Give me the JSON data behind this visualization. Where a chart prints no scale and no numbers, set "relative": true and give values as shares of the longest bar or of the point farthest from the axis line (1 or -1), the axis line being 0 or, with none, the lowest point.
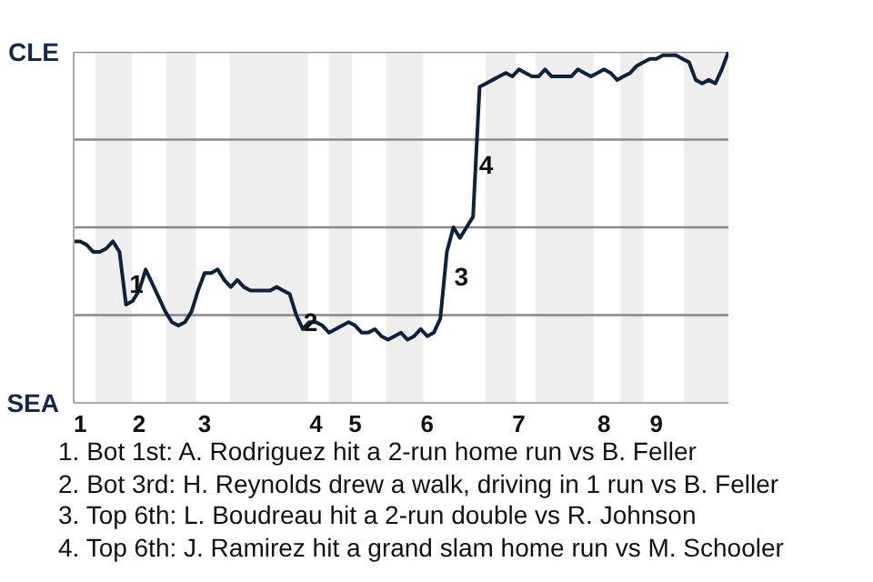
{
  "chart_data": {
    "type": "line",
    "relative": true,
    "categories": [
      null,
      "1",
      null,
      null,
      null,
      null,
      null,
      null,
      null,
      null,
      "2",
      null,
      null,
      null,
      null,
      null,
      null,
      null,
      null,
      null,
      "3",
      null,
      null,
      null,
      null,
      null,
      null,
      null,
      null,
      null,
      null,
      null,
      null,
      null,
      null,
      null,
      null,
      "4",
      null,
      null,
      null,
      null,
      null,
      "5",
      null,
      null,
      null,
      null,
      null,
      null,
      null,
      null,
      null,
      null,
      "6",
      null,
      null,
      null,
      null,
      null,
      null,
      null,
      null,
      null,
      null,
      null,
      null,
      null,
      "7",
      null,
      null,
      null,
      null,
      null,
      null,
      null,
      null,
      null,
      null,
      null,
      null,
      "8",
      null,
      null,
      null,
      null,
      null,
      null,
      null,
      "9",
      null,
      null,
      null,
      null,
      null,
      null,
      null,
      null,
      null,
      null,
      null
    ],
    "series": [
      {
        "color": "#0c2340",
        "values": [
          0.46,
          0.46,
          0.45,
          0.43,
          0.43,
          0.44,
          0.46,
          0.43,
          0.28,
          0.29,
          0.32,
          0.38,
          0.34,
          0.3,
          0.26,
          0.23,
          0.22,
          0.23,
          0.26,
          0.32,
          0.37,
          0.37,
          0.38,
          0.35,
          0.33,
          0.35,
          0.33,
          0.32,
          0.32,
          0.32,
          0.32,
          0.33,
          0.32,
          0.31,
          0.25,
          0.21,
          0.23,
          0.23,
          0.22,
          0.2,
          0.21,
          0.22,
          0.23,
          0.22,
          0.2,
          0.2,
          0.21,
          0.19,
          0.18,
          0.19,
          0.2,
          0.18,
          0.19,
          0.21,
          0.19,
          0.2,
          0.24,
          0.43,
          0.5,
          0.47,
          0.5,
          0.53,
          0.9,
          0.91,
          0.92,
          0.93,
          0.94,
          0.93,
          0.95,
          0.94,
          0.93,
          0.93,
          0.95,
          0.93,
          0.93,
          0.93,
          0.93,
          0.95,
          0.94,
          0.93,
          0.94,
          0.95,
          0.94,
          0.92,
          0.93,
          0.94,
          0.96,
          0.97,
          0.98,
          0.98,
          0.99,
          0.99,
          0.99,
          0.98,
          0.97,
          0.92,
          0.91,
          0.92,
          0.91,
          0.95,
          1.0
        ]
      }
    ],
    "marker": "none",
    "line_style": "solid",
    "ref_lines": [
      {
        "axis": "y",
        "value": 0.25,
        "color": "#888888"
      },
      {
        "axis": "y",
        "value": 0.5,
        "color": "#888888"
      },
      {
        "axis": "y",
        "value": 0.75,
        "color": "#888888"
      },
      {
        "axis": "y",
        "value": 1,
        "color": "#888888"
      }
    ],
    "annotations": [
      "CLE",
      "SEA",
      "1",
      "2",
      "3",
      "4",
      "1. Bot 1st: A. Rodriguez hit a 2-run home run vs B. Feller",
      "2. Bot 3rd: H. Reynolds drew a walk, driving in 1 run vs B. Feller",
      "3. Top 6th: L. Boudreau hit a 2-run double vs R. Johnson",
      "4. Top 6th: J. Ramirez hit a grand slam home run vs M. Schooler"
    ]
  }
}
